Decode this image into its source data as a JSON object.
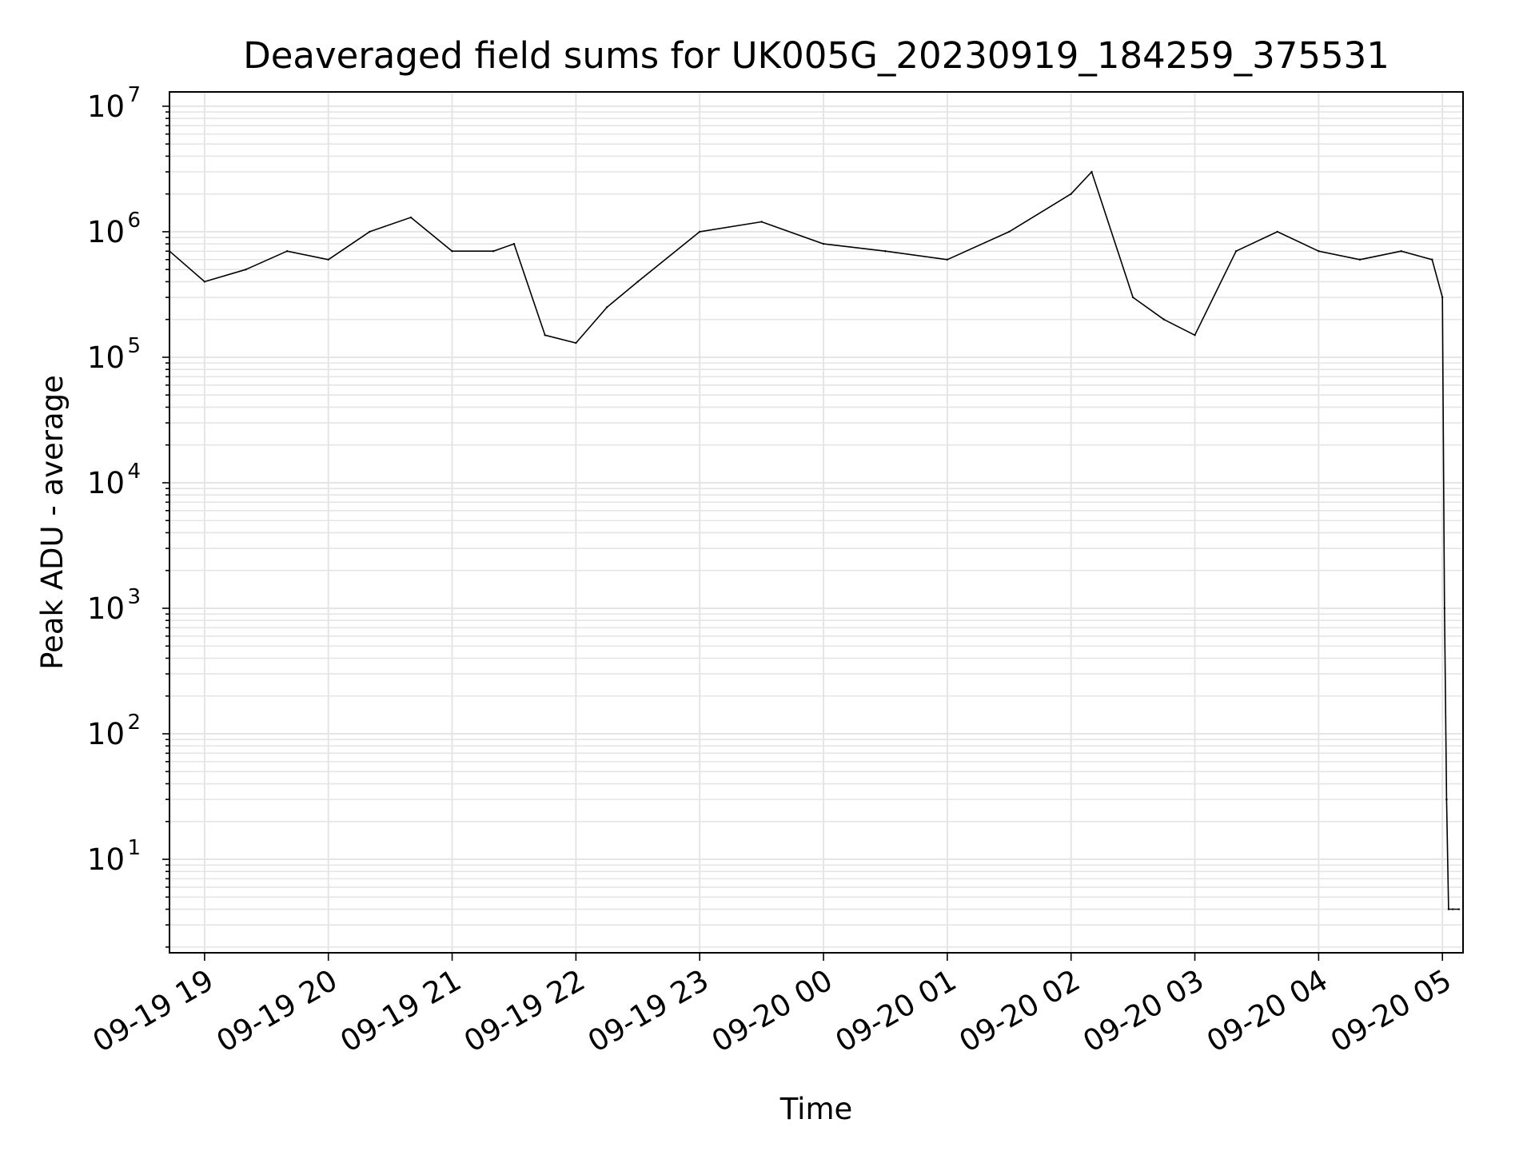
{
  "chart_data": {
    "type": "line",
    "title": "Deaveraged field sums for UK005G_20230919_184259_375531",
    "xlabel": "Time",
    "ylabel": "Peak ADU - average",
    "yscale": "log",
    "ylim": [
      1.8,
      13000000
    ],
    "xlim": [
      "2023-09-19 18:43",
      "2023-09-20 05:10"
    ],
    "grid": true,
    "line_color": "#000000",
    "grid_color": "#e5e5e5",
    "x_ticks": [
      {
        "value": "2023-09-19 19:00",
        "label": "09-19 19"
      },
      {
        "value": "2023-09-19 20:00",
        "label": "09-19 20"
      },
      {
        "value": "2023-09-19 21:00",
        "label": "09-19 21"
      },
      {
        "value": "2023-09-19 22:00",
        "label": "09-19 22"
      },
      {
        "value": "2023-09-19 23:00",
        "label": "09-19 23"
      },
      {
        "value": "2023-09-20 00:00",
        "label": "09-20 00"
      },
      {
        "value": "2023-09-20 01:00",
        "label": "09-20 01"
      },
      {
        "value": "2023-09-20 02:00",
        "label": "09-20 02"
      },
      {
        "value": "2023-09-20 03:00",
        "label": "09-20 03"
      },
      {
        "value": "2023-09-20 04:00",
        "label": "09-20 04"
      },
      {
        "value": "2023-09-20 05:00",
        "label": "09-20 05"
      }
    ],
    "y_ticks": [
      {
        "value": 10,
        "base": "10",
        "exp": "1"
      },
      {
        "value": 100,
        "base": "10",
        "exp": "2"
      },
      {
        "value": 1000,
        "base": "10",
        "exp": "3"
      },
      {
        "value": 10000,
        "base": "10",
        "exp": "4"
      },
      {
        "value": 100000,
        "base": "10",
        "exp": "5"
      },
      {
        "value": 1000000,
        "base": "10",
        "exp": "6"
      },
      {
        "value": 10000000,
        "base": "10",
        "exp": "7"
      }
    ],
    "series": [
      {
        "x": [
          "2023-09-19 18:43",
          "2023-09-19 19:00",
          "2023-09-19 19:20",
          "2023-09-19 19:40",
          "2023-09-19 20:00",
          "2023-09-19 20:20",
          "2023-09-19 20:40",
          "2023-09-19 21:00",
          "2023-09-19 21:20",
          "2023-09-19 21:30",
          "2023-09-19 21:45",
          "2023-09-19 22:00",
          "2023-09-19 22:15",
          "2023-09-19 22:30",
          "2023-09-19 23:00",
          "2023-09-19 23:30",
          "2023-09-20 00:00",
          "2023-09-20 00:30",
          "2023-09-20 01:00",
          "2023-09-20 01:30",
          "2023-09-20 02:00",
          "2023-09-20 02:10",
          "2023-09-20 02:30",
          "2023-09-20 02:45",
          "2023-09-20 03:00",
          "2023-09-20 03:20",
          "2023-09-20 03:40",
          "2023-09-20 04:00",
          "2023-09-20 04:20",
          "2023-09-20 04:40",
          "2023-09-20 04:55",
          "2023-09-20 05:00",
          "2023-09-20 05:01",
          "2023-09-20 05:02",
          "2023-09-20 05:03",
          "2023-09-20 05:05",
          "2023-09-20 05:08"
        ],
        "y": [
          700000,
          400000,
          500000,
          700000,
          600000,
          1000000,
          1300000,
          700000,
          700000,
          800000,
          150000,
          130000,
          250000,
          400000,
          1000000,
          1200000,
          800000,
          700000,
          600000,
          1000000,
          2000000,
          3000000,
          300000,
          200000,
          150000,
          700000,
          1000000,
          700000,
          600000,
          700000,
          600000,
          300000,
          1000,
          30,
          4,
          4,
          4
        ]
      }
    ]
  }
}
